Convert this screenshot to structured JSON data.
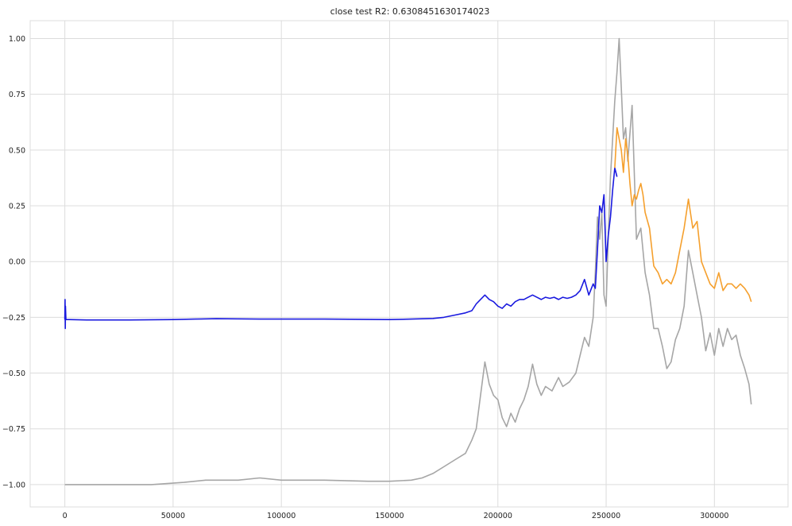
{
  "chart_data": {
    "type": "line",
    "title": "close test R2: 0.6308451630174023",
    "xlabel": "",
    "ylabel": "",
    "xlim": [
      -16000,
      334000
    ],
    "ylim": [
      -1.1,
      1.08
    ],
    "xticks": [
      0,
      50000,
      100000,
      150000,
      200000,
      250000,
      300000
    ],
    "yticks": [
      -1.0,
      -0.75,
      -0.5,
      -0.25,
      0.0,
      0.25,
      0.5,
      0.75,
      1.0
    ],
    "xtick_labels": [
      "0",
      "50000",
      "100000",
      "150000",
      "200000",
      "250000",
      "300000"
    ],
    "ytick_labels": [
      "−1.00",
      "−0.75",
      "−0.50",
      "−0.25",
      "0.00",
      "0.25",
      "0.50",
      "0.75",
      "1.00"
    ],
    "grid": true,
    "legend": "none",
    "series": [
      {
        "color": "#a6a6a6",
        "x": [
          0,
          20000,
          40000,
          55000,
          60000,
          65000,
          80000,
          90000,
          100000,
          120000,
          140000,
          150000,
          160000,
          165000,
          170000,
          175000,
          180000,
          185000,
          188000,
          190000,
          192000,
          194000,
          196000,
          198000,
          200000,
          202000,
          204000,
          206000,
          208000,
          210000,
          212000,
          214000,
          216000,
          218000,
          220000,
          222000,
          225000,
          228000,
          230000,
          233000,
          236000,
          238000,
          240000,
          242000,
          244000,
          245000,
          246000,
          247000,
          248000,
          249000,
          250000,
          251000,
          252000,
          253000,
          254000,
          255000,
          256000,
          257000,
          258000,
          259000,
          260000,
          262000,
          264000,
          266000,
          268000,
          270000,
          272000,
          274000,
          276000,
          278000,
          280000,
          282000,
          284000,
          286000,
          288000,
          290000,
          292000,
          294000,
          296000,
          298000,
          300000,
          302000,
          304000,
          306000,
          308000,
          310000,
          312000,
          314000,
          316000,
          317000
        ],
        "y": [
          -1.0,
          -1.0,
          -1.0,
          -0.99,
          -0.985,
          -0.98,
          -0.98,
          -0.97,
          -0.98,
          -0.98,
          -0.985,
          -0.985,
          -0.98,
          -0.97,
          -0.95,
          -0.92,
          -0.89,
          -0.86,
          -0.8,
          -0.75,
          -0.6,
          -0.45,
          -0.55,
          -0.6,
          -0.62,
          -0.7,
          -0.74,
          -0.68,
          -0.72,
          -0.66,
          -0.62,
          -0.56,
          -0.46,
          -0.55,
          -0.6,
          -0.56,
          -0.58,
          -0.52,
          -0.56,
          -0.54,
          -0.5,
          -0.42,
          -0.34,
          -0.38,
          -0.25,
          -0.05,
          0.2,
          0.1,
          0.22,
          -0.15,
          -0.2,
          0.12,
          0.38,
          0.55,
          0.72,
          0.85,
          1.0,
          0.78,
          0.55,
          0.6,
          0.45,
          0.7,
          0.1,
          0.15,
          -0.05,
          -0.15,
          -0.3,
          -0.3,
          -0.38,
          -0.48,
          -0.45,
          -0.35,
          -0.3,
          -0.2,
          0.05,
          -0.05,
          -0.15,
          -0.25,
          -0.4,
          -0.32,
          -0.42,
          -0.3,
          -0.38,
          -0.3,
          -0.35,
          -0.33,
          -0.42,
          -0.48,
          -0.55,
          -0.64
        ]
      },
      {
        "color": "#1a1adf",
        "x": [
          0,
          100,
          200,
          300,
          500,
          2000,
          10000,
          30000,
          50000,
          60000,
          70000,
          90000,
          120000,
          150000,
          160000,
          170000,
          175000,
          180000,
          185000,
          188000,
          190000,
          192000,
          194000,
          196000,
          198000,
          200000,
          202000,
          204000,
          206000,
          208000,
          210000,
          212000,
          214000,
          216000,
          218000,
          220000,
          222000,
          224000,
          226000,
          228000,
          230000,
          232000,
          234000,
          236000,
          238000,
          240000,
          242000,
          244000,
          245000,
          246000,
          247000,
          248000,
          249000,
          250000,
          251000,
          252000,
          253000,
          254000,
          255000
        ],
        "y": [
          -0.26,
          -0.17,
          -0.3,
          -0.2,
          -0.26,
          -0.26,
          -0.262,
          -0.262,
          -0.26,
          -0.258,
          -0.256,
          -0.258,
          -0.258,
          -0.26,
          -0.258,
          -0.255,
          -0.25,
          -0.24,
          -0.23,
          -0.22,
          -0.19,
          -0.17,
          -0.15,
          -0.17,
          -0.18,
          -0.2,
          -0.21,
          -0.19,
          -0.2,
          -0.18,
          -0.17,
          -0.17,
          -0.16,
          -0.15,
          -0.16,
          -0.17,
          -0.16,
          -0.165,
          -0.16,
          -0.17,
          -0.16,
          -0.165,
          -0.16,
          -0.15,
          -0.13,
          -0.08,
          -0.15,
          -0.1,
          -0.12,
          0.05,
          0.25,
          0.22,
          0.3,
          0.0,
          0.12,
          0.2,
          0.32,
          0.42,
          0.38
        ]
      },
      {
        "color": "#f5a02e",
        "x": [
          254000,
          255000,
          256000,
          257000,
          258000,
          259000,
          260000,
          261000,
          262000,
          263000,
          264000,
          265000,
          266000,
          267000,
          268000,
          270000,
          272000,
          274000,
          276000,
          278000,
          280000,
          282000,
          284000,
          286000,
          288000,
          290000,
          292000,
          294000,
          296000,
          298000,
          300000,
          302000,
          304000,
          306000,
          308000,
          310000,
          312000,
          314000,
          316000,
          317000
        ],
        "y": [
          0.42,
          0.6,
          0.55,
          0.5,
          0.4,
          0.55,
          0.48,
          0.35,
          0.25,
          0.3,
          0.28,
          0.32,
          0.35,
          0.3,
          0.22,
          0.15,
          -0.02,
          -0.05,
          -0.1,
          -0.08,
          -0.1,
          -0.05,
          0.05,
          0.15,
          0.28,
          0.15,
          0.18,
          0.0,
          -0.05,
          -0.1,
          -0.12,
          -0.05,
          -0.13,
          -0.1,
          -0.1,
          -0.12,
          -0.1,
          -0.12,
          -0.15,
          -0.18
        ]
      }
    ]
  }
}
